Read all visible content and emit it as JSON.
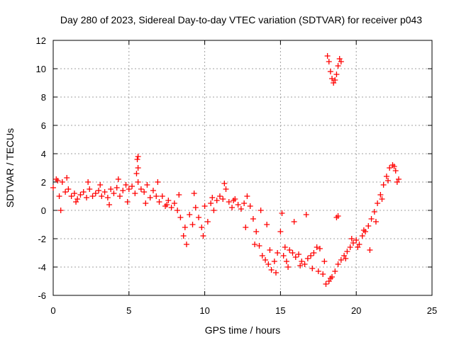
{
  "chart_data": {
    "type": "scatter",
    "title": "Day 280 of 2023, Sidereal Day-to-day VTEC variation (SDTVAR) for receiver p043",
    "xlabel": "GPS time / hours",
    "ylabel": "SDTVAR / TECUs",
    "xlim": [
      0,
      25
    ],
    "ylim": [
      -6,
      12
    ],
    "xticks": [
      "0",
      "5",
      "10",
      "15",
      "20",
      "25"
    ],
    "yticks": [
      "-6",
      "-4",
      "-2",
      "0",
      "2",
      "4",
      "6",
      "8",
      "10",
      "12"
    ],
    "grid": true,
    "marker": "+",
    "color": "#ff0000",
    "series": [
      {
        "name": "SDTVAR",
        "x": [
          0.0,
          0.2,
          0.4,
          0.6,
          0.8,
          1.0,
          1.2,
          1.4,
          1.6,
          1.8,
          2.0,
          2.2,
          2.4,
          2.6,
          2.8,
          3.0,
          3.2,
          3.4,
          3.6,
          3.8,
          4.0,
          4.2,
          4.4,
          4.6,
          4.8,
          5.0,
          5.2,
          5.4,
          5.6,
          5.8,
          6.0,
          6.2,
          6.4,
          6.6,
          6.8,
          7.0,
          7.2,
          7.4,
          7.6,
          7.8,
          8.0,
          8.2,
          8.4,
          8.6,
          8.8,
          9.0,
          9.2,
          9.4,
          9.6,
          9.8,
          10.0,
          10.2,
          10.4,
          10.6,
          10.8,
          11.0,
          11.2,
          11.4,
          11.6,
          11.8,
          12.0,
          12.2,
          12.4,
          12.6,
          12.8,
          13.0,
          13.2,
          13.4,
          13.6,
          13.8,
          14.0,
          14.2,
          14.4,
          14.6,
          14.8,
          15.0,
          15.2,
          15.4,
          15.6,
          15.8,
          16.0,
          16.2,
          16.4,
          16.6,
          16.8,
          17.0,
          17.2,
          17.4,
          17.6,
          17.8,
          18.0,
          18.2,
          18.4,
          18.6,
          18.8,
          19.0,
          19.2,
          19.4,
          19.6,
          19.8,
          20.0,
          20.2,
          20.4,
          20.6,
          20.8,
          21.0,
          21.2,
          21.4,
          21.6,
          21.8,
          22.0,
          22.2,
          22.4,
          22.6,
          22.8,
          18.1,
          18.2,
          18.3,
          18.4,
          18.5,
          18.6,
          18.7,
          18.8,
          18.9,
          19.0,
          0.3,
          0.5,
          0.9,
          1.5,
          2.3,
          3.1,
          3.7,
          4.3,
          4.9,
          5.5,
          5.6,
          6.1,
          6.9,
          7.5,
          8.3,
          8.7,
          9.3,
          9.9,
          10.5,
          11.3,
          11.9,
          12.7,
          13.3,
          13.7,
          14.1,
          14.3,
          14.7,
          15.1,
          15.3,
          15.5,
          15.9,
          16.3,
          16.7,
          17.1,
          17.5,
          17.9,
          18.3,
          18.7,
          19.3,
          19.7,
          20.1,
          20.5,
          20.9,
          21.3,
          21.7,
          22.1,
          22.5,
          22.7,
          5.55,
          5.6,
          18.8
        ],
        "y": [
          1.6,
          2.2,
          1.0,
          2.0,
          1.3,
          1.5,
          1.0,
          1.2,
          0.8,
          1.1,
          1.3,
          0.9,
          1.5,
          1.0,
          1.2,
          1.4,
          1.0,
          1.3,
          0.9,
          1.5,
          1.2,
          1.6,
          1.0,
          1.4,
          1.8,
          1.5,
          1.7,
          1.2,
          2.0,
          1.5,
          1.3,
          1.8,
          0.9,
          1.4,
          1.0,
          0.6,
          1.0,
          0.3,
          0.7,
          0.2,
          0.5,
          0.0,
          -0.5,
          -1.8,
          -2.4,
          -0.3,
          -1.0,
          0.2,
          -0.5,
          -1.2,
          0.3,
          -0.8,
          0.5,
          0.0,
          0.7,
          1.0,
          0.8,
          1.5,
          0.6,
          0.2,
          0.8,
          0.4,
          0.1,
          0.5,
          1.0,
          0.3,
          -0.6,
          -1.5,
          -2.5,
          -3.2,
          -3.5,
          -3.8,
          -4.2,
          -3.6,
          -3.0,
          -1.5,
          -3.2,
          -3.6,
          -2.8,
          -3.0,
          -3.3,
          -3.1,
          -3.6,
          -3.8,
          -3.4,
          -3.2,
          -3.0,
          -2.6,
          -2.7,
          -4.5,
          -5.2,
          -5.0,
          -4.7,
          -4.3,
          -3.8,
          -3.5,
          -3.2,
          -2.9,
          -2.6,
          -2.3,
          -2.1,
          -2.4,
          -1.8,
          -1.5,
          -1.1,
          -0.6,
          -0.1,
          0.5,
          1.1,
          1.8,
          2.4,
          3.0,
          3.2,
          2.8,
          2.2,
          10.9,
          10.5,
          9.8,
          9.3,
          9.0,
          9.2,
          9.6,
          10.2,
          10.7,
          10.5,
          2.1,
          0.0,
          2.3,
          0.6,
          2.0,
          1.8,
          0.4,
          2.2,
          0.6,
          2.6,
          3.8,
          0.5,
          2.0,
          0.4,
          1.1,
          -1.2,
          1.2,
          -1.8,
          0.9,
          1.9,
          0.7,
          -1.2,
          -2.4,
          0.0,
          -1.0,
          -2.8,
          -4.4,
          -0.2,
          -2.6,
          -4.0,
          -0.8,
          -3.9,
          -0.3,
          -4.1,
          -4.3,
          -3.6,
          -4.8,
          -0.5,
          -3.4,
          -2.0,
          -2.6,
          -1.4,
          -2.8,
          -0.8,
          0.8,
          2.1,
          3.1,
          2.0,
          3.6,
          3.0,
          -0.4
        ]
      }
    ]
  }
}
